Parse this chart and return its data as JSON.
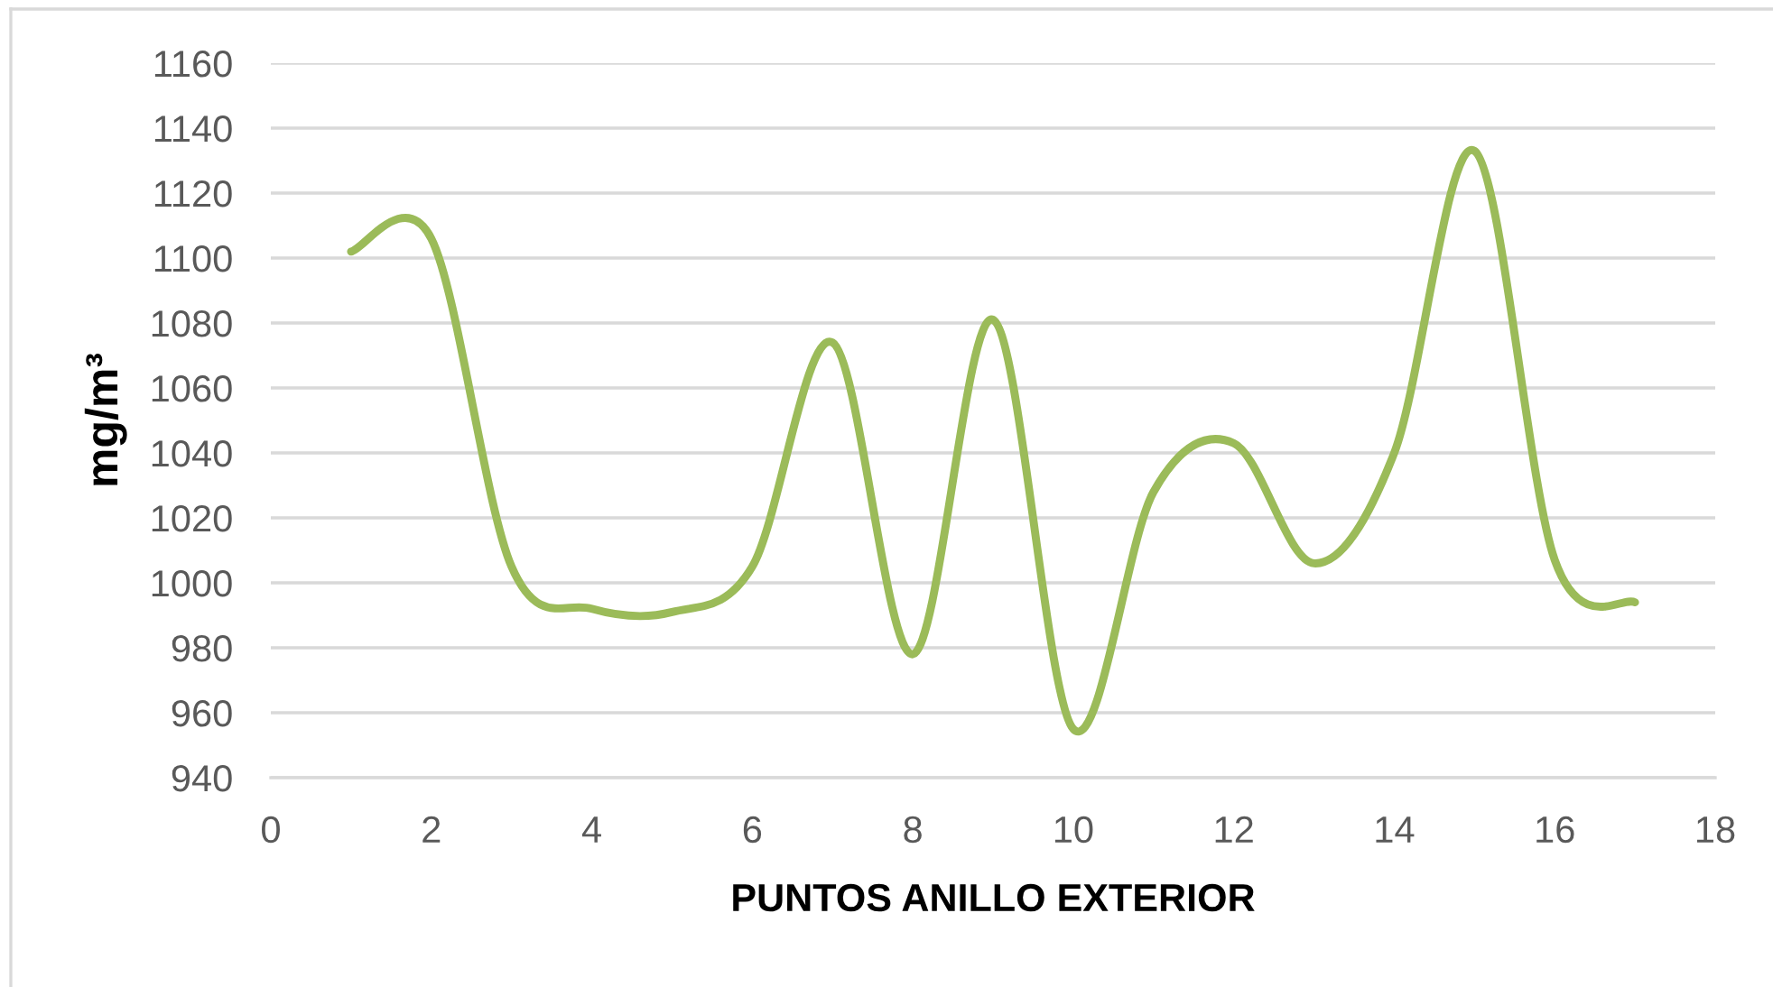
{
  "chart_data": {
    "type": "line",
    "xlabel": "PUNTOS ANILLO EXTERIOR",
    "ylabel": "mg/m³",
    "x": [
      1,
      2,
      3,
      4,
      5,
      6,
      7,
      8,
      9,
      10,
      11,
      12,
      13,
      14,
      15,
      16,
      17
    ],
    "series": [
      {
        "color": "#9bbb59",
        "values": [
          1102,
          1106,
          1005,
          992,
          991,
          1005,
          1074,
          978,
          1081,
          955,
          1028,
          1043,
          1006,
          1040,
          1133,
          1007,
          994
        ]
      }
    ],
    "xlim": [
      0,
      18
    ],
    "xticks": [
      0,
      2,
      4,
      6,
      8,
      10,
      12,
      14,
      16,
      18
    ],
    "ylim": [
      940,
      1160
    ],
    "yticks": [
      940,
      960,
      980,
      1000,
      1020,
      1040,
      1060,
      1080,
      1100,
      1120,
      1140,
      1160
    ],
    "grid": "y",
    "line_style": "solid"
  }
}
